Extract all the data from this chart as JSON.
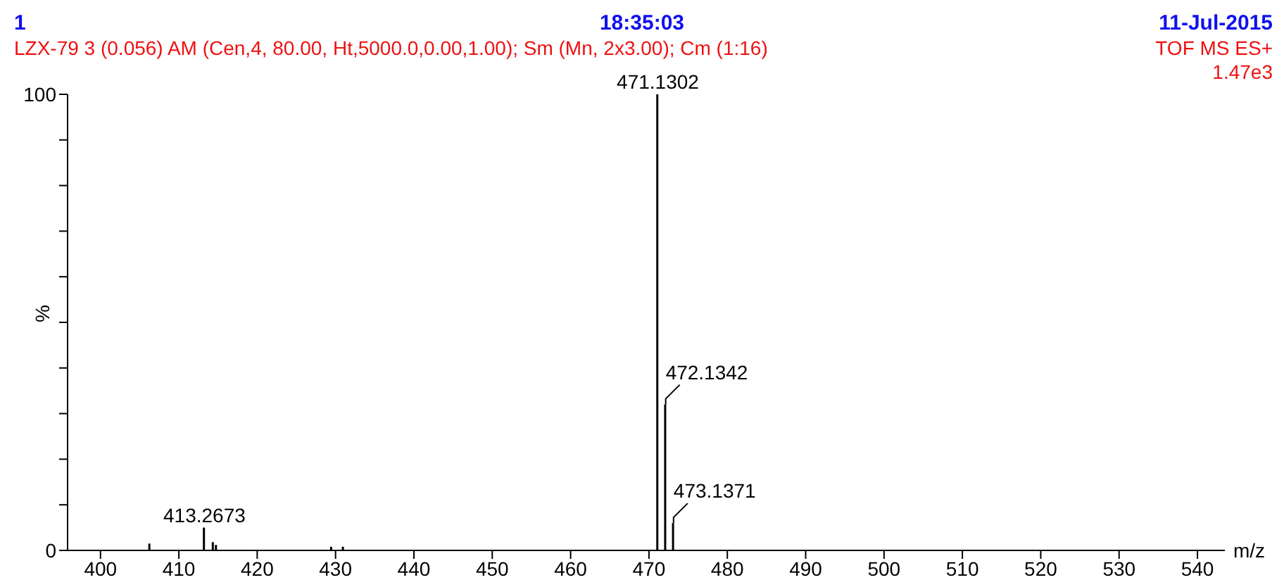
{
  "chart_data": {
    "type": "bar",
    "xlabel": "m/z",
    "ylabel": "%",
    "annotations": [
      "1",
      "18:35:03",
      "11-Jul-2015",
      "LZX-79 3 (0.056) AM (Cen,4, 80.00, Ht,5000.0,0.00,1.00); Sm (Mn, 2x3.00); Cm (1:16)",
      "TOF MS ES+",
      "1.47e3",
      {
        "text": "413.2673",
        "x": 413.2673,
        "y": 5
      },
      {
        "text": "471.1302",
        "x": 471.1302,
        "y": 100
      },
      {
        "text": "472.1342",
        "x": 472.1342,
        "y": 32
      },
      {
        "text": "473.1371",
        "x": 473.1371,
        "y": 6
      }
    ],
    "x": [
      406.3,
      413.2673,
      414.4,
      414.8,
      429.5,
      431.0,
      471.1302,
      472.1342,
      473.1371
    ],
    "values": [
      1.5,
      5,
      1.8,
      1.2,
      0.8,
      0.8,
      100,
      32,
      6
    ],
    "color": "#000000",
    "xlim": [
      395.8,
      543.5
    ],
    "xticks": [
      400,
      410,
      420,
      430,
      440,
      450,
      460,
      470,
      480,
      490,
      500,
      510,
      520,
      530,
      540
    ],
    "ylim": [
      0,
      100
    ],
    "yticks": [
      0,
      {
        "value": 10,
        "label": null
      },
      {
        "value": 20,
        "label": null
      },
      {
        "value": 30,
        "label": null
      },
      {
        "value": 40,
        "label": null
      },
      {
        "value": 50,
        "label": null
      },
      {
        "value": 60,
        "label": null
      },
      {
        "value": 70,
        "label": null
      },
      {
        "value": 80,
        "label": null
      },
      {
        "value": 90,
        "label": null
      },
      100
    ],
    "grid": false,
    "legend": false
  }
}
